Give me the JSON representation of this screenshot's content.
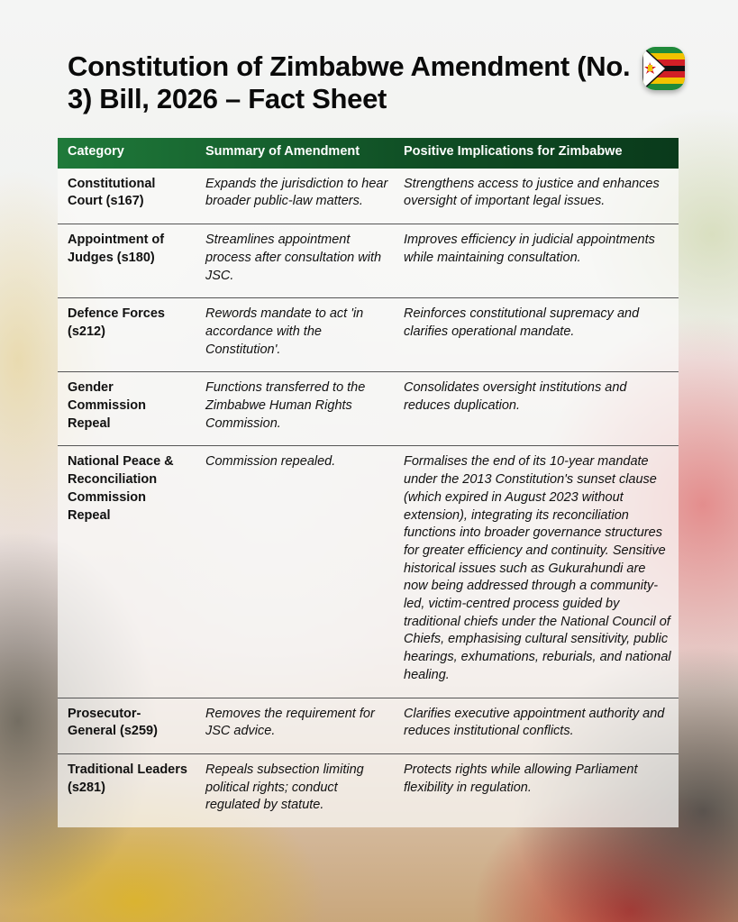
{
  "title": "Constitution of Zimbabwe Amendment (No. 3) Bill, 2026 – Fact Sheet",
  "flag_icon": "zimbabwe-flag-icon",
  "colors": {
    "header_green": "#0f4d24",
    "flag_green": "#1f8a3a",
    "flag_yellow": "#f2c300",
    "flag_red": "#d21f26",
    "flag_black": "#111111"
  },
  "table": {
    "headers": [
      "Category",
      "Summary of Amendment",
      "Positive Implications for Zimbabwe"
    ],
    "rows": [
      {
        "category": "Constitutional Court (s167)",
        "summary": "Expands the jurisdiction to hear broader public-law matters.",
        "implications": "Strengthens access to justice and enhances oversight of important legal issues."
      },
      {
        "category": "Appointment of Judges (s180)",
        "summary": "Streamlines appointment process after consultation with JSC.",
        "implications": "Improves efficiency in judicial appointments while maintaining consultation."
      },
      {
        "category": "Defence Forces (s212)",
        "summary": "Rewords mandate to act 'in accordance with the Constitution'.",
        "implications": "Reinforces constitutional supremacy and clarifies operational mandate."
      },
      {
        "category": "Gender Commission Repeal",
        "summary": "Functions transferred to the Zimbabwe Human Rights Commission.",
        "implications": "Consolidates oversight institutions and reduces duplication."
      },
      {
        "category": "National Peace & Reconciliation Commission Repeal",
        "summary": "Commission repealed.",
        "implications": "Formalises the end of its 10-year mandate under the 2013 Constitution's sunset clause (which expired in August 2023 without extension), integrating its reconciliation functions into broader governance structures for greater efficiency and continuity. Sensitive historical issues such as Gukurahundi are now being addressed through a community-led, victim-centred process guided by traditional chiefs under the National Council of Chiefs, emphasising cultural sensitivity, public hearings, exhumations, reburials, and national healing."
      },
      {
        "category": "Prosecutor-General (s259)",
        "summary": "Removes the requirement for JSC advice.",
        "implications": "Clarifies executive appointment authority and reduces institutional conflicts."
      },
      {
        "category": "Traditional Leaders (s281)",
        "summary": "Repeals subsection limiting political rights; conduct regulated by statute.",
        "implications": "Protects rights while allowing Parliament flexibility in regulation."
      }
    ]
  }
}
